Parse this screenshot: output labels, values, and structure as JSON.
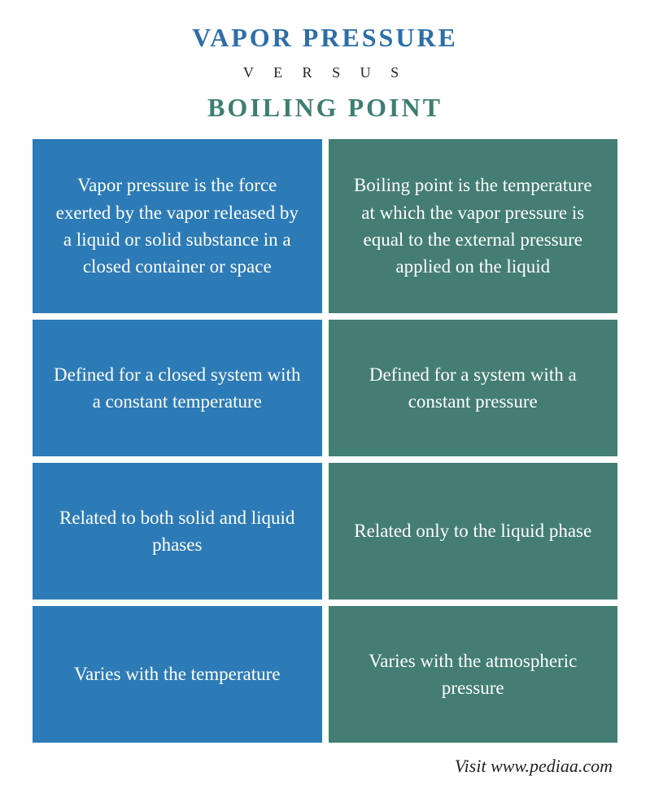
{
  "header": {
    "title_a": "VAPOR PRESSURE",
    "versus": "V E R S U S",
    "title_b": "BOILING POINT",
    "color_a": "#2d6ea8",
    "color_b": "#3e7e72"
  },
  "columns": {
    "left": {
      "bg": "#2d7bb6",
      "cells": [
        "Vapor pressure is the force exerted by the vapor released by a liquid or solid substance in a closed container or space",
        "Defined for a closed system with a constant temperature",
        "Related to both solid and liquid phases",
        "Varies with the temperature"
      ]
    },
    "right": {
      "bg": "#447d73",
      "cells": [
        "Boiling point is the temperature at which the vapor pressure is equal to the external pressure applied on the liquid",
        "Defined for a system with a constant pressure",
        "Related only to the liquid phase",
        "Varies with the atmospheric pressure"
      ]
    }
  },
  "footer": "Visit www.pediaa.com",
  "style": {
    "page_bg": "#ffffff",
    "text_color": "#ffffff",
    "cell_font_size": 23,
    "title_font_size": 32,
    "versus_font_size": 18,
    "footer_font_size": 22,
    "divider_dot_color": "#ffffff"
  }
}
